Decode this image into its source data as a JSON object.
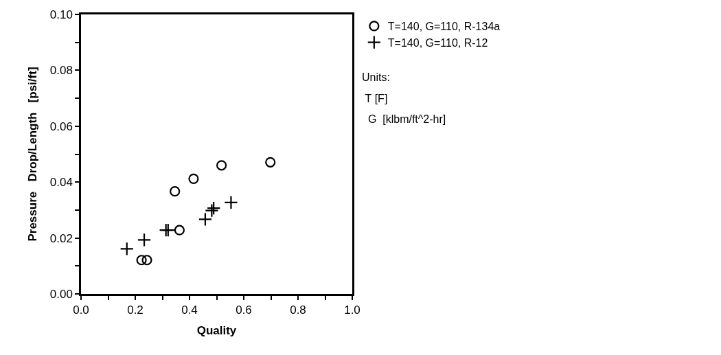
{
  "chart_data": {
    "type": "scatter",
    "xlabel": "Quality",
    "ylabel": "Pressure   Drop/Length   [psi/ft]",
    "xlim": [
      0,
      1
    ],
    "ylim": [
      0,
      0.1
    ],
    "xticks": [
      {
        "value": 0,
        "label": "0.0"
      },
      {
        "value": 0.1,
        "label": null
      },
      {
        "value": 0.2,
        "label": "0.2"
      },
      {
        "value": 0.3,
        "label": null
      },
      {
        "value": 0.4,
        "label": "0.4"
      },
      {
        "value": 0.5,
        "label": null
      },
      {
        "value": 0.6,
        "label": "0.6"
      },
      {
        "value": 0.7,
        "label": null
      },
      {
        "value": 0.8,
        "label": "0.8"
      },
      {
        "value": 0.9,
        "label": null
      },
      {
        "value": 1,
        "label": "1.0"
      }
    ],
    "yticks": [
      {
        "value": 0,
        "label": "0.00"
      },
      {
        "value": 0.01,
        "label": null
      },
      {
        "value": 0.02,
        "label": "0.02"
      },
      {
        "value": 0.03,
        "label": null
      },
      {
        "value": 0.04,
        "label": "0.04"
      },
      {
        "value": 0.05,
        "label": null
      },
      {
        "value": 0.06,
        "label": "0.06"
      },
      {
        "value": 0.07,
        "label": null
      },
      {
        "value": 0.08,
        "label": "0.08"
      },
      {
        "value": 0.09,
        "label": null
      },
      {
        "value": 0.1,
        "label": "0.10"
      }
    ],
    "legend": "top right",
    "series": [
      {
        "name": "T=140, G=110, R-134a",
        "color": "#000000",
        "marker": "circle",
        "x": [
          0.223,
          0.243,
          0.346,
          0.363,
          0.415,
          0.518,
          0.698
        ],
        "values": [
          0.0121,
          0.0121,
          0.0367,
          0.0228,
          0.0412,
          0.046,
          0.0471
        ]
      },
      {
        "name": "T=140, G=110, R-12",
        "color": "#000000",
        "marker": "cross",
        "x": [
          0.169,
          0.233,
          0.313,
          0.321,
          0.458,
          0.482,
          0.489,
          0.553
        ],
        "values": [
          0.0161,
          0.0193,
          0.0228,
          0.0228,
          0.0267,
          0.0298,
          0.0307,
          0.0327
        ]
      }
    ],
    "annotations": [
      "Units:",
      " T [F]",
      "  G  [klbm/ft^2-hr]"
    ]
  }
}
